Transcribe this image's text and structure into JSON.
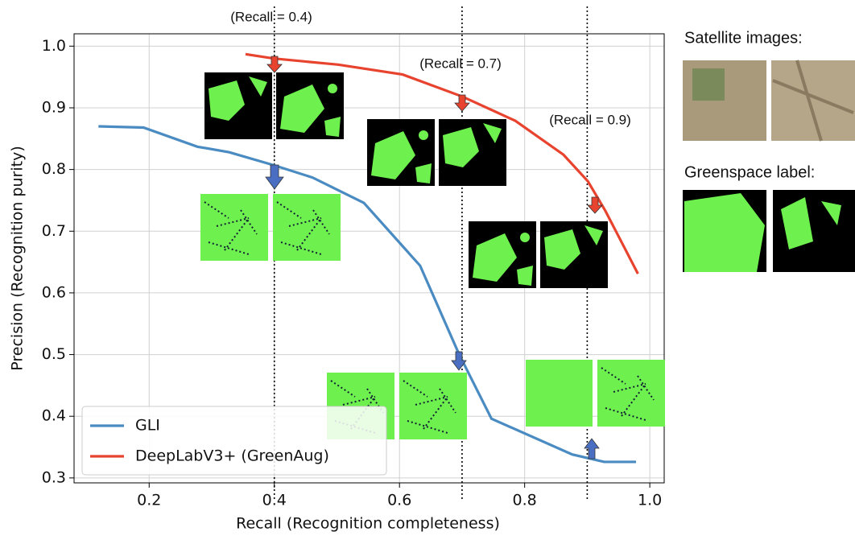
{
  "chart_data": {
    "type": "line",
    "xlabel": "Recall (Recognition completeness)",
    "ylabel": "Precision (Recognition purity)",
    "xlim": [
      0.08,
      1.023
    ],
    "ylim": [
      0.292,
      1.02
    ],
    "xticks": [
      0.2,
      0.4,
      0.6,
      0.8,
      {
        "value": 1.0,
        "label": "1.0"
      }
    ],
    "yticks": [
      0.3,
      0.4,
      0.5,
      0.6,
      0.7,
      0.8,
      0.9,
      {
        "value": 1.0,
        "label": "1.0"
      }
    ],
    "grid": true,
    "legend": "lower left",
    "series": [
      {
        "name": "GLI",
        "color": "#4a8bc2",
        "x": [
          0.119,
          0.191,
          0.277,
          0.328,
          0.399,
          0.461,
          0.543,
          0.633,
          0.695,
          0.747,
          0.876,
          0.927,
          0.978
        ],
        "values": [
          0.87,
          0.868,
          0.837,
          0.828,
          0.807,
          0.787,
          0.746,
          0.644,
          0.501,
          0.396,
          0.338,
          0.326,
          0.326
        ]
      },
      {
        "name": "DeepLabV3+ (GreenAug)",
        "color": "#e8432e",
        "x": [
          0.354,
          0.399,
          0.502,
          0.605,
          0.701,
          0.785,
          0.862,
          0.901,
          0.929,
          0.981
        ],
        "values": [
          0.987,
          0.98,
          0.97,
          0.954,
          0.918,
          0.879,
          0.824,
          0.781,
          0.733,
          0.631
        ]
      }
    ],
    "annotations": [
      {
        "text": "(Recall = 0.4)",
        "x": 0.4
      },
      {
        "text": "(Recall = 0.7)",
        "x": 0.7
      },
      {
        "text": "(Recall = 0.9)",
        "x": 0.9
      }
    ],
    "side_labels": [
      "Satellite images:",
      "Greenspace label:"
    ]
  }
}
